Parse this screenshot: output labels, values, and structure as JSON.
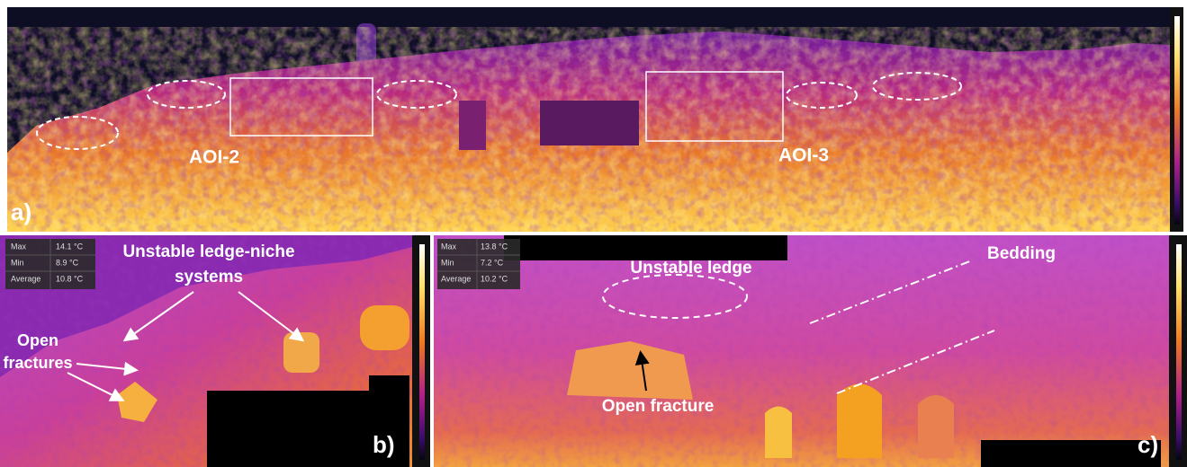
{
  "panels": {
    "a": {
      "label": "a)",
      "aoi": [
        "AOI-2",
        "AOI-3"
      ]
    },
    "b": {
      "label": "b)",
      "stats": [
        [
          "Max",
          "14.1 °C"
        ],
        [
          "Min",
          "8.9 °C"
        ],
        [
          "Average",
          "10.8 °C"
        ]
      ],
      "ledge_label": [
        "Unstable ledge-niche",
        "systems"
      ],
      "fracture_label": [
        "Open",
        "fractures"
      ]
    },
    "c": {
      "label": "c)",
      "stats": [
        [
          "Max",
          "13.8 °C"
        ],
        [
          "Min",
          "7.2 °C"
        ],
        [
          "Average",
          "10.2 °C"
        ]
      ],
      "ledge_label": "Unstable ledge",
      "bedding_label": "Bedding",
      "fracture_label": "Open fracture"
    }
  }
}
